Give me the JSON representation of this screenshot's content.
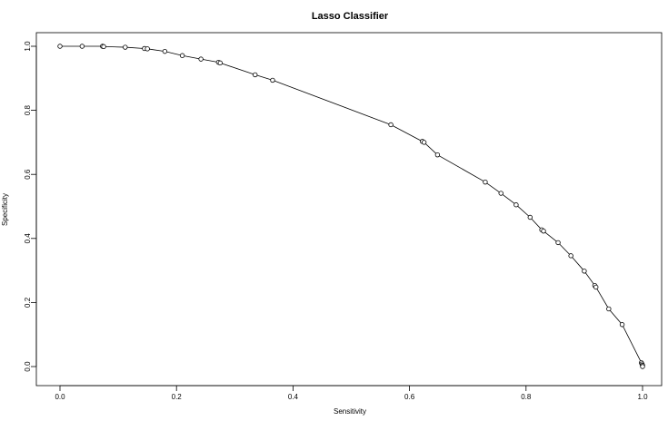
{
  "chart_data": {
    "type": "line",
    "title": "Lasso Classifier",
    "xlabel": "Sensitivity",
    "ylabel": "Specificity",
    "xlim": [
      0.0,
      1.0
    ],
    "ylim": [
      0.0,
      1.0
    ],
    "grid": false,
    "legend": "none",
    "marker": "open-circle",
    "colors": {
      "line": "#000000",
      "marker_edge": "#000000",
      "marker_fill": "#ffffff",
      "background": "#ffffff"
    },
    "x_ticks": [
      "0.0",
      "0.2",
      "0.4",
      "0.6",
      "0.8",
      "1.0"
    ],
    "y_ticks": [
      "0.0",
      "0.2",
      "0.4",
      "0.6",
      "0.8",
      "1.0"
    ],
    "series": [
      {
        "points": [
          {
            "x": 0.0,
            "y": 1.0
          },
          {
            "x": 0.038,
            "y": 1.0
          },
          {
            "x": 0.073,
            "y": 1.0
          },
          {
            "x": 0.075,
            "y": 0.999
          },
          {
            "x": 0.112,
            "y": 0.997
          },
          {
            "x": 0.145,
            "y": 0.993
          },
          {
            "x": 0.15,
            "y": 0.992
          },
          {
            "x": 0.18,
            "y": 0.984
          },
          {
            "x": 0.21,
            "y": 0.971
          },
          {
            "x": 0.242,
            "y": 0.96
          },
          {
            "x": 0.272,
            "y": 0.95
          },
          {
            "x": 0.275,
            "y": 0.948
          },
          {
            "x": 0.335,
            "y": 0.911
          },
          {
            "x": 0.365,
            "y": 0.894
          },
          {
            "x": 0.568,
            "y": 0.755
          },
          {
            "x": 0.622,
            "y": 0.703
          },
          {
            "x": 0.625,
            "y": 0.7
          },
          {
            "x": 0.648,
            "y": 0.661
          },
          {
            "x": 0.73,
            "y": 0.576
          },
          {
            "x": 0.757,
            "y": 0.541
          },
          {
            "x": 0.783,
            "y": 0.505
          },
          {
            "x": 0.807,
            "y": 0.466
          },
          {
            "x": 0.827,
            "y": 0.427
          },
          {
            "x": 0.83,
            "y": 0.423
          },
          {
            "x": 0.855,
            "y": 0.387
          },
          {
            "x": 0.877,
            "y": 0.346
          },
          {
            "x": 0.9,
            "y": 0.298
          },
          {
            "x": 0.918,
            "y": 0.253
          },
          {
            "x": 0.92,
            "y": 0.248
          },
          {
            "x": 0.942,
            "y": 0.18
          },
          {
            "x": 0.965,
            "y": 0.131
          },
          {
            "x": 0.998,
            "y": 0.012
          },
          {
            "x": 0.999,
            "y": 0.008
          },
          {
            "x": 1.0,
            "y": 0.004
          },
          {
            "x": 1.0,
            "y": 0.0
          }
        ]
      }
    ]
  }
}
